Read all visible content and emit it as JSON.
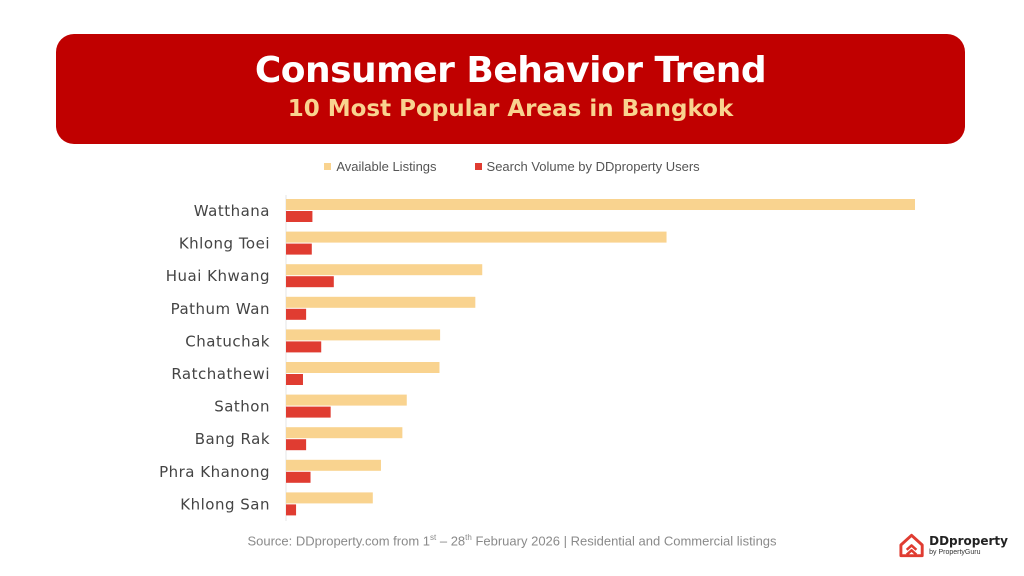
{
  "header": {
    "title": "Consumer Behavior Trend",
    "subtitle": "10 Most Popular Areas in Bangkok"
  },
  "colors": {
    "banner": "#c00000",
    "subtitle": "#f9d38f",
    "listings": "#f9d38f",
    "search": "#e03c31"
  },
  "chart_data": {
    "type": "bar",
    "orientation": "horizontal",
    "categories": [
      "Watthana",
      "Khlong Toei",
      "Huai Khwang",
      "Pathum Wan",
      "Chatuchak",
      "Ratchathewi",
      "Sathon",
      "Bang Rak",
      "Phra Khanong",
      "Khlong San"
    ],
    "series": [
      {
        "name": "Available Listings",
        "color": "#f9d38f",
        "values": [
          100,
          60.5,
          31.2,
          30.1,
          24.5,
          24.4,
          19.2,
          18.5,
          15.1,
          13.8
        ]
      },
      {
        "name": "Search Volume by DDproperty Users",
        "color": "#e03c31",
        "values": [
          4.2,
          4.1,
          7.6,
          3.2,
          5.6,
          2.7,
          7.1,
          3.2,
          3.9,
          1.6
        ]
      }
    ],
    "xlim": [
      0,
      100
    ],
    "grid": false,
    "legend": "top-center",
    "value_axis_labels": false
  },
  "source": {
    "prefix": "Source: DDproperty.com from 1",
    "sup1": "st",
    "middle": " – 28",
    "sup2": "th",
    "suffix": " February 2026 | Residential and Commercial listings"
  },
  "logo": {
    "brand": "DDproperty",
    "sub": "by PropertyGuru",
    "icon": "ddproperty-house-icon"
  }
}
